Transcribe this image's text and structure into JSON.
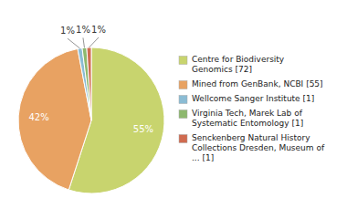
{
  "chart_data": {
    "type": "pie",
    "categories": [
      "Centre for Biodiversity\nGenomics [72]",
      "Mined from GenBank, NCBI [55]",
      "Wellcome Sanger Institute [1]",
      "Virginia Tech, Marek Lab of\nSystematic Entomology [1]",
      "Senckenberg Natural History\nCollections Dresden, Museum of\n... [1]"
    ],
    "values": [
      55,
      42,
      1,
      1,
      1
    ],
    "value_labels": [
      "55%",
      "42%",
      "1%",
      "1%",
      "1%"
    ],
    "data_labels": true,
    "colors": [
      "#c8d46e",
      "#e8a262",
      "#8bbcd4",
      "#8db86e",
      "#d06b50"
    ],
    "legend": "right"
  }
}
